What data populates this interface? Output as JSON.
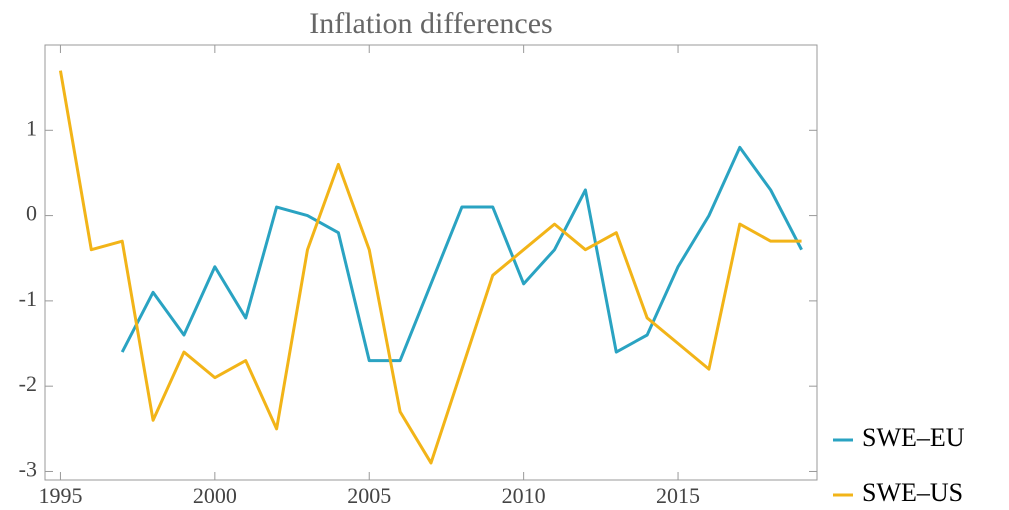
{
  "chart_data": {
    "type": "line",
    "title": "Inflation differences",
    "x": [
      1995,
      1996,
      1997,
      1998,
      1999,
      2000,
      2001,
      2002,
      2003,
      2004,
      2005,
      2006,
      2007,
      2008,
      2009,
      2010,
      2011,
      2012,
      2013,
      2014,
      2015,
      2016,
      2017,
      2018,
      2019
    ],
    "series": [
      {
        "name": "SWE–EU",
        "color": "#2aa3c2",
        "values": [
          null,
          null,
          -1.6,
          -0.9,
          -1.4,
          -0.6,
          -1.2,
          0.1,
          0.0,
          -0.2,
          -1.7,
          -1.7,
          -0.8,
          0.1,
          0.1,
          -0.8,
          -0.4,
          0.3,
          -1.6,
          -1.4,
          -0.6,
          0.0,
          0.8,
          0.3,
          -0.4
        ]
      },
      {
        "name": "SWE–US",
        "color": "#f2b418",
        "values": [
          1.7,
          -0.4,
          -0.3,
          -2.4,
          -1.6,
          -1.9,
          -1.7,
          -2.5,
          -0.4,
          0.6,
          -0.4,
          -2.3,
          -2.9,
          -1.8,
          -0.7,
          -0.4,
          -0.1,
          -0.4,
          -0.2,
          -1.2,
          -1.5,
          -1.8,
          -0.1,
          -0.3,
          -0.3
        ]
      }
    ],
    "xlim": [
      1994.5,
      2019.5
    ],
    "xticks": [
      1995,
      2000,
      2005,
      2010,
      2015
    ],
    "ylim": [
      -3.1,
      2.0
    ],
    "yticks": [
      -3,
      -2,
      -1,
      0,
      1
    ]
  }
}
